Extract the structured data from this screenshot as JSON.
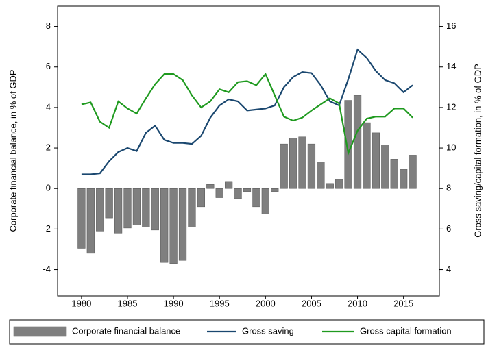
{
  "chart_data": {
    "type": "combo",
    "x": [
      1980,
      1981,
      1982,
      1983,
      1984,
      1985,
      1986,
      1987,
      1988,
      1989,
      1990,
      1991,
      1992,
      1993,
      1994,
      1995,
      1996,
      1997,
      1998,
      1999,
      2000,
      2001,
      2002,
      2003,
      2004,
      2005,
      2006,
      2007,
      2008,
      2009,
      2010,
      2011,
      2012,
      2013,
      2014,
      2015,
      2016
    ],
    "series": [
      {
        "name": "Corporate financial balance",
        "type": "bar",
        "color": "#7f7f7f",
        "values": [
          -2.95,
          -3.2,
          -2.1,
          -1.45,
          -2.2,
          -1.95,
          -1.8,
          -1.9,
          -2.05,
          -3.65,
          -3.7,
          -3.55,
          -1.9,
          -0.9,
          0.2,
          -0.45,
          0.35,
          -0.5,
          -0.15,
          -0.9,
          -1.25,
          -0.15,
          2.2,
          2.5,
          2.55,
          2.2,
          1.3,
          0.25,
          0.45,
          4.35,
          4.6,
          3.25,
          2.75,
          2.15,
          1.45,
          0.95,
          1.65
        ]
      },
      {
        "name": "Gross saving",
        "type": "line",
        "axis": "y2",
        "color": "#1a476f",
        "values": [
          8.7,
          8.7,
          8.75,
          9.35,
          9.8,
          10.0,
          9.85,
          10.75,
          11.1,
          10.4,
          10.25,
          10.25,
          10.2,
          10.6,
          11.5,
          12.1,
          12.4,
          12.3,
          11.85,
          11.9,
          11.95,
          12.1,
          13.0,
          13.5,
          13.75,
          13.7,
          13.1,
          12.3,
          12.1,
          13.4,
          14.85,
          14.45,
          13.8,
          13.35,
          13.2,
          12.75,
          13.1
        ]
      },
      {
        "name": "Gross capital formation",
        "type": "line",
        "axis": "y2",
        "color": "#1f9a1f",
        "values": [
          12.15,
          12.25,
          11.3,
          11.0,
          12.3,
          11.95,
          11.7,
          12.45,
          13.15,
          13.65,
          13.65,
          13.35,
          12.6,
          12.0,
          12.3,
          12.9,
          12.75,
          13.25,
          13.3,
          13.1,
          13.65,
          12.6,
          11.55,
          11.35,
          11.5,
          11.85,
          12.15,
          12.45,
          12.2,
          9.75,
          10.85,
          11.45,
          11.55,
          11.55,
          11.95,
          11.95,
          11.5
        ]
      }
    ],
    "y_label": "Corporate financial balance, in % of GDP",
    "y2_label": "Gross saving/capital formation, in % of GDP",
    "xlim": [
      1977.4,
      2018.9
    ],
    "xticks": [
      1980,
      1985,
      1990,
      1995,
      2000,
      2005,
      2010,
      2015
    ],
    "ylim": [
      -5.3,
      9
    ],
    "yticks": [
      -4,
      -2,
      0,
      2,
      4,
      6,
      8
    ],
    "y2lim": [
      2.7,
      17
    ],
    "y2ticks": [
      4,
      6,
      8,
      10,
      12,
      14,
      16
    ],
    "legend": "bottom"
  }
}
